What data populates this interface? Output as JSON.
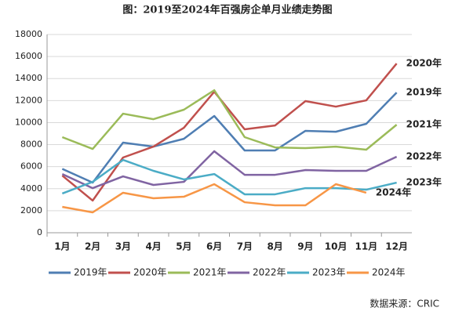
{
  "chart_data": {
    "type": "line",
    "title": "图：2019至2024年百强房企单月业绩走势图",
    "source": "数据来源：CRIC",
    "categories": [
      "1月",
      "2月",
      "3月",
      "4月",
      "5月",
      "6月",
      "7月",
      "8月",
      "9月",
      "10月",
      "11月",
      "12月"
    ],
    "ylim": [
      0,
      18000
    ],
    "yticks": [
      0,
      2000,
      4000,
      6000,
      8000,
      10000,
      12000,
      14000,
      16000,
      18000
    ],
    "grid": true,
    "legend": "bottom",
    "series": [
      {
        "name": "2019年",
        "color": "#4f7eb3",
        "values": [
          5800,
          4550,
          8180,
          7820,
          8530,
          10600,
          7470,
          7470,
          9250,
          9170,
          9890,
          12730
        ]
      },
      {
        "name": "2020年",
        "color": "#c0504d",
        "values": [
          5190,
          2920,
          6830,
          7820,
          9530,
          12800,
          9390,
          9740,
          11950,
          11450,
          12020,
          15360
        ]
      },
      {
        "name": "2021年",
        "color": "#9bbb59",
        "values": [
          8680,
          7610,
          10810,
          10310,
          11170,
          12940,
          8680,
          7750,
          7680,
          7820,
          7540,
          9810
        ]
      },
      {
        "name": "2022年",
        "color": "#8064a2",
        "values": [
          5330,
          4050,
          5120,
          4340,
          4620,
          7400,
          5260,
          5260,
          5690,
          5620,
          5620,
          6900
        ]
      },
      {
        "name": "2023年",
        "color": "#4bacc6",
        "values": [
          3560,
          4620,
          6610,
          5620,
          4840,
          5330,
          3490,
          3490,
          4050,
          4050,
          3910,
          4550
        ]
      },
      {
        "name": "2024年",
        "color": "#f79646",
        "values": [
          2350,
          1850,
          3630,
          3130,
          3270,
          4410,
          2770,
          2490,
          2490,
          4410,
          3630,
          null
        ]
      }
    ]
  }
}
